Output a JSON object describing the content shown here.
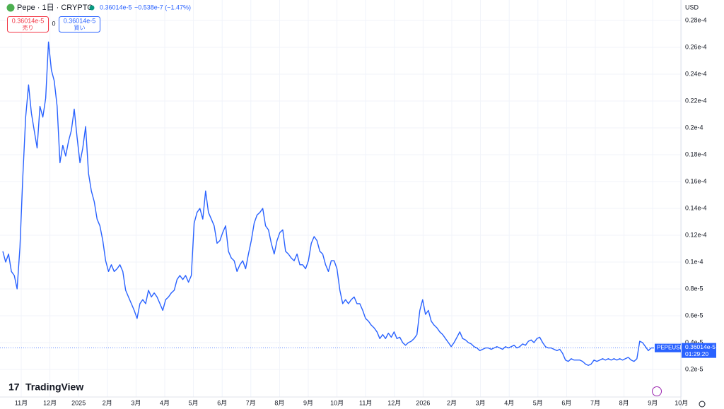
{
  "chart_data": {
    "type": "line",
    "series": [
      {
        "name": "PEPEUSD",
        "color": "#2962ff",
        "values": [
          1.08e-05,
          1e-05,
          1.06e-05,
          9.3e-06,
          9e-06,
          8e-06,
          1.11e-05,
          1.64e-05,
          2.08e-05,
          2.32e-05,
          2.11e-05,
          1.98e-05,
          1.85e-05,
          2.16e-05,
          2.08e-05,
          2.22e-05,
          2.64e-05,
          2.43e-05,
          2.35e-05,
          2.16e-05,
          1.74e-05,
          1.87e-05,
          1.79e-05,
          1.9e-05,
          1.98e-05,
          2.14e-05,
          1.93e-05,
          1.74e-05,
          1.85e-05,
          2.01e-05,
          1.66e-05,
          1.53e-05,
          1.45e-05,
          1.32e-05,
          1.27e-05,
          1.16e-05,
          1.01e-05,
          9.3e-06,
          9.8e-06,
          9.3e-06,
          9.5e-06,
          9.8e-06,
          9.3e-06,
          7.9e-06,
          7.4e-06,
          6.9e-06,
          6.4e-06,
          5.8e-06,
          6.9e-06,
          7.2e-06,
          6.9e-06,
          7.9e-06,
          7.4e-06,
          7.7e-06,
          7.4e-06,
          6.9e-06,
          6.4e-06,
          7.2e-06,
          7.4e-06,
          7.7e-06,
          7.9e-06,
          8.7e-06,
          9e-06,
          8.7e-06,
          9e-06,
          8.5e-06,
          9e-06,
          1.29e-05,
          1.37e-05,
          1.4e-05,
          1.32e-05,
          1.53e-05,
          1.37e-05,
          1.32e-05,
          1.27e-05,
          1.14e-05,
          1.16e-05,
          1.22e-05,
          1.27e-05,
          1.08e-05,
          1.03e-05,
          1.01e-05,
          9.3e-06,
          9.8e-06,
          1.01e-05,
          9.5e-06,
          1.06e-05,
          1.16e-05,
          1.29e-05,
          1.35e-05,
          1.37e-05,
          1.4e-05,
          1.27e-05,
          1.24e-05,
          1.14e-05,
          1.06e-05,
          1.16e-05,
          1.22e-05,
          1.24e-05,
          1.08e-05,
          1.06e-05,
          1.03e-05,
          1.01e-05,
          1.06e-05,
          9.8e-06,
          9.8e-06,
          9.5e-06,
          1.01e-05,
          1.14e-05,
          1.19e-05,
          1.16e-05,
          1.08e-05,
          1.06e-05,
          9.8e-06,
          9.3e-06,
          1.01e-05,
          1.01e-05,
          9.5e-06,
          7.9e-06,
          6.9e-06,
          7.2e-06,
          6.9e-06,
          7.2e-06,
          7.4e-06,
          6.9e-06,
          6.9e-06,
          6.4e-06,
          5.8e-06,
          5.6e-06,
          5.3e-06,
          5.1e-06,
          4.8e-06,
          4.3e-06,
          4.6e-06,
          4.3e-06,
          4.7e-06,
          4.4e-06,
          4.8e-06,
          4.3e-06,
          4.4e-06,
          4e-06,
          3.8e-06,
          4e-06,
          4.1e-06,
          4.3e-06,
          4.6e-06,
          6.4e-06,
          7.2e-06,
          6.1e-06,
          6.4e-06,
          5.6e-06,
          5.3e-06,
          5.1e-06,
          4.8e-06,
          4.6e-06,
          4.3e-06,
          4e-06,
          3.7e-06,
          4e-06,
          4.4e-06,
          4.8e-06,
          4.3e-06,
          4.2e-06,
          4e-06,
          3.9e-06,
          3.7e-06,
          3.6e-06,
          3.4e-06,
          3.5e-06,
          3.6e-06,
          3.6e-06,
          3.5e-06,
          3.6e-06,
          3.7e-06,
          3.6e-06,
          3.5e-06,
          3.7e-06,
          3.6e-06,
          3.7e-06,
          3.8e-06,
          3.6e-06,
          3.7e-06,
          3.9e-06,
          3.8e-06,
          4.1e-06,
          4.2e-06,
          4e-06,
          4.3e-06,
          4.4e-06,
          4e-06,
          3.7e-06,
          3.6e-06,
          3.6e-06,
          3.5e-06,
          3.4e-06,
          3.5e-06,
          3.2e-06,
          2.7e-06,
          2.6e-06,
          2.8e-06,
          2.7e-06,
          2.7e-06,
          2.7e-06,
          2.6e-06,
          2.4e-06,
          2.3e-06,
          2.4e-06,
          2.7e-06,
          2.6e-06,
          2.7e-06,
          2.8e-06,
          2.7e-06,
          2.8e-06,
          2.7e-06,
          2.8e-06,
          2.7e-06,
          2.8e-06,
          2.7e-06,
          2.8e-06,
          2.9e-06,
          2.7e-06,
          2.6e-06,
          2.8e-06,
          4.1e-06,
          4e-06,
          3.7e-06,
          3.4e-06,
          3.6e-06,
          3.6e-06
        ]
      }
    ],
    "ylim": [
      0,
      3e-05
    ],
    "yticks": [
      {
        "value": 2.8e-05,
        "label": "0.28e-4"
      },
      {
        "value": 2.6e-05,
        "label": "0.26e-4"
      },
      {
        "value": 2.4e-05,
        "label": "0.24e-4"
      },
      {
        "value": 2.2e-05,
        "label": "0.22e-4"
      },
      {
        "value": 2e-05,
        "label": "0.2e-4"
      },
      {
        "value": 1.8e-05,
        "label": "0.18e-4"
      },
      {
        "value": 1.6e-05,
        "label": "0.16e-4"
      },
      {
        "value": 1.4e-05,
        "label": "0.14e-4"
      },
      {
        "value": 1.2e-05,
        "label": "0.12e-4"
      },
      {
        "value": 1e-05,
        "label": "0.1e-4"
      },
      {
        "value": 8e-06,
        "label": "0.8e-5"
      },
      {
        "value": 6e-06,
        "label": "0.6e-5"
      },
      {
        "value": 4e-06,
        "label": "0.4e-5"
      },
      {
        "value": 2e-06,
        "label": "0.2e-5"
      }
    ],
    "xtick_labels": [
      "11月",
      "12月",
      "2025",
      "2月",
      "3月",
      "4月",
      "5月",
      "6月",
      "7月",
      "8月",
      "9月",
      "10月",
      "11月",
      "12月",
      "2026",
      "2月",
      "3月",
      "4月",
      "5月",
      "6月",
      "7月",
      "8月",
      "9月",
      "10月"
    ],
    "grid": true
  },
  "header": {
    "symbol": "Pepe · 1日 · CRYPTO",
    "price": "0.36014e-5",
    "change": "−0.538e-7 (−1.47%)",
    "sell_price": "0.36014e-5",
    "sell_label": "売り",
    "spread": "0",
    "buy_price": "0.36014e-5",
    "buy_label": "買い"
  },
  "axis_panel": {
    "currency": "USD",
    "tag_symbol": "PEPEUSD",
    "tag_price": "0.36014e-5",
    "tag_countdown": "01:29:20"
  },
  "branding": {
    "logo": "TradingView"
  }
}
